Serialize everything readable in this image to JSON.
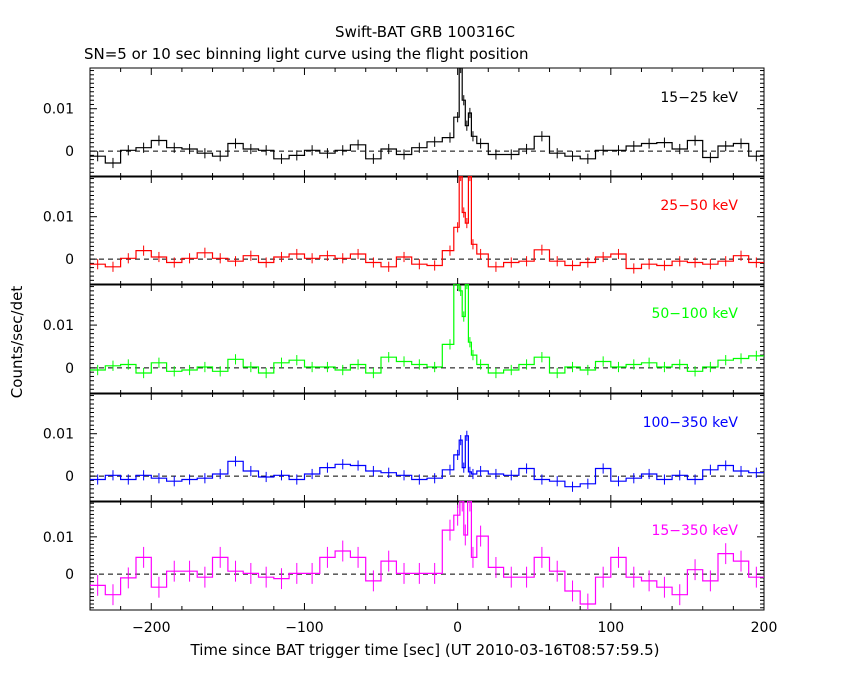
{
  "title": "Swift-BAT GRB 100316C",
  "subtitle": "SN=5 or 10 sec binning light curve using the flight position",
  "ylabel": "Counts/sec/det",
  "xlabel": "Time since BAT trigger time [sec] (UT 2010-03-16T08:57:59.5)",
  "x_ticks": [
    "−200",
    "−100",
    "0",
    "100",
    "200"
  ],
  "y_ticks": [
    "0",
    "0.01"
  ],
  "chart_data": [
    {
      "type": "line",
      "name": "15-25 keV",
      "label": "15−25 keV",
      "color": "#000000",
      "xlim": [
        -240,
        200
      ],
      "ylim": [
        -0.0061,
        0.0196
      ],
      "x": [
        -235,
        -225,
        -215,
        -205,
        -195,
        -185,
        -175,
        -165,
        -155,
        -145,
        -135,
        -125,
        -115,
        -105,
        -95,
        -85,
        -75,
        -65,
        -55,
        -45,
        -35,
        -25,
        -15,
        -5,
        0,
        2,
        4,
        6,
        8,
        10,
        15,
        25,
        35,
        45,
        55,
        65,
        75,
        85,
        95,
        105,
        115,
        125,
        135,
        145,
        155,
        165,
        175,
        185,
        195
      ],
      "y": [
        -0.0012,
        -0.0028,
        0.0002,
        0.0008,
        0.0025,
        0.0008,
        0.0005,
        -0.0005,
        -0.0012,
        0.0018,
        0.0005,
        0.0002,
        -0.0018,
        -0.001,
        0.0002,
        -0.0005,
        0.0002,
        0.0015,
        -0.0018,
        0.0005,
        -0.0008,
        0.0008,
        0.0022,
        0.0032,
        0.008,
        0.0196,
        0.012,
        0.006,
        0.009,
        0.0035,
        0.0018,
        -0.0008,
        -0.0008,
        0.0005,
        0.0035,
        -0.0005,
        -0.0012,
        -0.0018,
        0.0002,
        0.0002,
        0.0012,
        0.0018,
        0.002,
        0.0005,
        0.0025,
        -0.0015,
        0.0012,
        0.0018,
        -0.0012
      ],
      "yerr": 0.0012
    },
    {
      "type": "line",
      "name": "25-50 keV",
      "label": "25−50 keV",
      "color": "#ff0000",
      "xlim": [
        -240,
        200
      ],
      "ylim": [
        -0.0061,
        0.0196
      ],
      "x": [
        -235,
        -225,
        -215,
        -205,
        -195,
        -185,
        -175,
        -165,
        -155,
        -145,
        -135,
        -125,
        -115,
        -105,
        -95,
        -85,
        -75,
        -65,
        -55,
        -45,
        -35,
        -25,
        -15,
        -5,
        0,
        2,
        4,
        6,
        8,
        10,
        15,
        25,
        35,
        45,
        55,
        65,
        75,
        85,
        95,
        105,
        115,
        125,
        135,
        145,
        155,
        165,
        175,
        185,
        195
      ],
      "y": [
        -0.0012,
        -0.0018,
        0.0002,
        0.002,
        0.0005,
        -0.0008,
        0.0002,
        0.0015,
        0.0002,
        -0.0005,
        0.0008,
        -0.0008,
        0.0005,
        0.0012,
        0.0002,
        0.0008,
        0.0002,
        0.0012,
        -0.0008,
        -0.0018,
        0.0005,
        -0.0012,
        -0.0015,
        0.002,
        0.0075,
        0.0196,
        0.011,
        0.0085,
        0.0196,
        0.0035,
        0.0012,
        -0.0018,
        -0.0008,
        -0.0005,
        0.0022,
        -0.0005,
        -0.0015,
        -0.0008,
        0.0005,
        0.0012,
        -0.0022,
        -0.0012,
        -0.0015,
        -0.0005,
        -0.0008,
        -0.0012,
        -0.0005,
        0.0008,
        -0.0008
      ],
      "yerr": 0.0012
    },
    {
      "type": "line",
      "name": "50-100 keV",
      "label": "50−100 keV",
      "color": "#00ff00",
      "xlim": [
        -240,
        200
      ],
      "ylim": [
        -0.0061,
        0.0196
      ],
      "x": [
        -235,
        -225,
        -215,
        -205,
        -195,
        -185,
        -175,
        -165,
        -155,
        -145,
        -135,
        -125,
        -115,
        -105,
        -95,
        -85,
        -75,
        -65,
        -55,
        -45,
        -35,
        -25,
        -15,
        -5,
        0,
        2,
        4,
        6,
        8,
        10,
        15,
        25,
        35,
        45,
        55,
        65,
        75,
        85,
        95,
        105,
        115,
        125,
        135,
        145,
        155,
        165,
        175,
        185,
        195
      ],
      "y": [
        -0.0005,
        0.0005,
        0.0008,
        -0.0012,
        0.0012,
        -0.0008,
        -0.0005,
        0.0002,
        -0.0008,
        0.002,
        0.0002,
        -0.0012,
        0.0012,
        0.0018,
        0.0002,
        0.0002,
        -0.0005,
        0.0008,
        -0.0012,
        0.0025,
        0.0015,
        0.0008,
        0.0002,
        0.0055,
        0.0196,
        0.018,
        0.012,
        0.0196,
        0.006,
        0.003,
        0.0008,
        -0.0012,
        -0.0005,
        0.0008,
        0.0025,
        -0.0012,
        0.0002,
        -0.0005,
        0.0015,
        0.0002,
        0.0008,
        0.0012,
        0.0002,
        0.0008,
        -0.0008,
        0.0002,
        0.0018,
        0.0022,
        0.0028
      ],
      "yerr": 0.0012
    },
    {
      "type": "line",
      "name": "100-350 keV",
      "label": "100−350 keV",
      "color": "#0000ff",
      "xlim": [
        -240,
        200
      ],
      "ylim": [
        -0.0061,
        0.0196
      ],
      "x": [
        -235,
        -225,
        -215,
        -205,
        -195,
        -185,
        -175,
        -165,
        -155,
        -145,
        -135,
        -125,
        -115,
        -105,
        -95,
        -85,
        -75,
        -65,
        -55,
        -45,
        -35,
        -25,
        -15,
        -5,
        0,
        2,
        4,
        6,
        8,
        10,
        15,
        25,
        35,
        45,
        55,
        65,
        75,
        85,
        95,
        105,
        115,
        125,
        135,
        145,
        155,
        165,
        175,
        185,
        195
      ],
      "y": [
        -0.0008,
        0.0002,
        -0.0008,
        0.0002,
        -0.0005,
        -0.0012,
        -0.0008,
        -0.0005,
        0.0005,
        0.0035,
        0.0012,
        -0.0002,
        0.0002,
        -0.0008,
        0.0005,
        0.002,
        0.0028,
        0.0025,
        0.0012,
        0.0008,
        0.0002,
        -0.0008,
        -0.0005,
        0.0015,
        0.005,
        0.0085,
        0.002,
        0.0095,
        0.001,
        0.0005,
        0.0012,
        0.0005,
        0.0002,
        0.0018,
        -0.0008,
        -0.0012,
        -0.0025,
        -0.0018,
        0.0018,
        -0.0012,
        -0.0005,
        0.0005,
        -0.0008,
        0.0002,
        -0.0008,
        0.0015,
        0.0025,
        0.0012,
        0.0008
      ],
      "yerr": 0.0012
    },
    {
      "type": "line",
      "name": "15-350 keV",
      "label": "15−350 keV",
      "color": "#ff00ff",
      "xlim": [
        -240,
        200
      ],
      "ylim": [
        -0.0096,
        0.0196
      ],
      "x": [
        -235,
        -225,
        -215,
        -205,
        -195,
        -185,
        -175,
        -165,
        -155,
        -145,
        -135,
        -125,
        -115,
        -105,
        -95,
        -85,
        -75,
        -65,
        -55,
        -45,
        -35,
        -25,
        -15,
        -5,
        0,
        3,
        5,
        8,
        10,
        15,
        25,
        35,
        45,
        55,
        65,
        75,
        85,
        95,
        105,
        115,
        125,
        135,
        145,
        155,
        165,
        175,
        185,
        195
      ],
      "y": [
        -0.003,
        -0.0055,
        -0.001,
        0.0045,
        -0.0035,
        0.0008,
        0.0008,
        -0.0008,
        0.0045,
        0.0008,
        0.0002,
        -0.0008,
        -0.0012,
        0.0002,
        0.0002,
        0.0045,
        0.0062,
        0.0045,
        -0.0018,
        0.0035,
        0.0002,
        0.0002,
        0.0002,
        0.0118,
        0.0158,
        0.0196,
        0.0105,
        0.0196,
        0.0045,
        0.0102,
        0.0018,
        -0.0008,
        -0.0008,
        0.0045,
        0.0008,
        -0.0045,
        -0.008,
        -0.0008,
        0.0045,
        -0.0008,
        -0.0018,
        -0.0035,
        -0.0055,
        0.0012,
        -0.0018,
        0.0055,
        0.0035,
        -0.0008
      ],
      "yerr": 0.0028
    }
  ]
}
